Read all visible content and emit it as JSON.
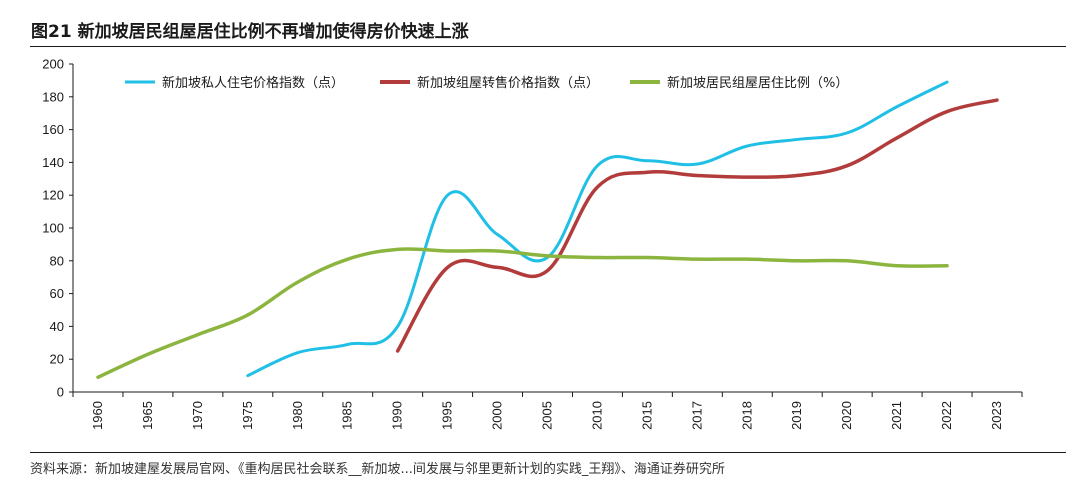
{
  "title": "图21 新加坡居民组屋居住比例不再增加使得房价快速上涨",
  "source": "资料来源：新加坡建屋发展局官网、《重构居民社会联系__新加坡...间发展与邻里更新计划的实践_王翔》、海通证券研究所",
  "chart_data": {
    "type": "line",
    "categories": [
      "1960",
      "1965",
      "1970",
      "1975",
      "1980",
      "1985",
      "1990",
      "1995",
      "2000",
      "2005",
      "2010",
      "2015",
      "2017",
      "2018",
      "2019",
      "2020",
      "2021",
      "2022",
      "2023"
    ],
    "ylim": [
      0,
      200
    ],
    "yticks": [
      0,
      20,
      40,
      60,
      80,
      100,
      120,
      140,
      160,
      180,
      200
    ],
    "grid": false,
    "legend_position": "top",
    "series": [
      {
        "name": "新加坡私人住宅价格指数（点）",
        "color": "#1fbfe6",
        "values": [
          null,
          null,
          null,
          10,
          24,
          29,
          40,
          120,
          96,
          82,
          138,
          141,
          139,
          150,
          154,
          158,
          174,
          189,
          null
        ]
      },
      {
        "name": "新加坡组屋转售价格指数（点）",
        "color": "#b23b3b",
        "values": [
          null,
          null,
          null,
          null,
          null,
          null,
          25,
          76,
          76,
          74,
          125,
          134,
          132,
          131,
          132,
          138,
          155,
          171,
          178
        ]
      },
      {
        "name": "新加坡居民组屋居住比例（%）",
        "color": "#8cb540",
        "values": [
          9,
          23,
          35,
          47,
          67,
          81,
          87,
          86,
          86,
          83,
          82,
          82,
          81,
          81,
          80,
          80,
          77,
          77,
          null
        ]
      }
    ]
  }
}
